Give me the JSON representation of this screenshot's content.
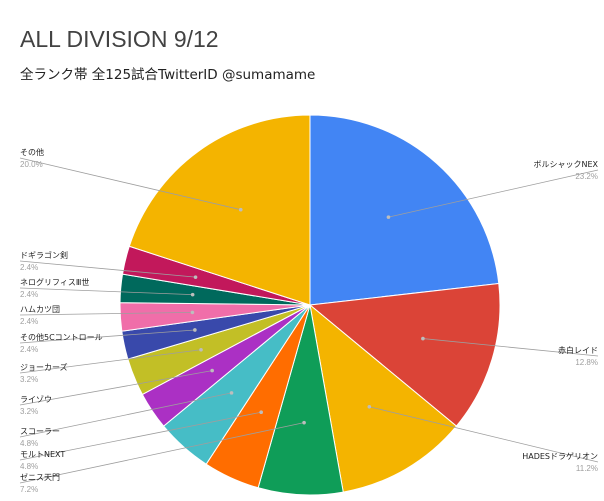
{
  "chart_data": {
    "type": "pie",
    "title": "ALL DIVISION 9/12",
    "subtitle": "全ランク帯 全125試合TwitterID @sumamame",
    "legend": "labels",
    "slices": [
      {
        "name": "ボルシャックNEX",
        "value": 23.2,
        "value_label": "23.2%",
        "color": "#4285f4",
        "side": "right"
      },
      {
        "name": "赤白レイド",
        "value": 12.8,
        "value_label": "12.8%",
        "color": "#db4437",
        "side": "right"
      },
      {
        "name": "HADESドラゲリオン",
        "value": 11.2,
        "value_label": "11.2%",
        "color": "#f4b400",
        "side": "right"
      },
      {
        "name": "ゼニス天門",
        "value": 7.2,
        "value_label": "7.2%",
        "color": "#0f9d58",
        "side": "left"
      },
      {
        "name": "モルトNEXT",
        "value": 4.8,
        "value_label": "4.8%",
        "color": "#ff6d00",
        "side": "left"
      },
      {
        "name": "スコーラー",
        "value": 4.8,
        "value_label": "4.8%",
        "color": "#46bdc6",
        "side": "left"
      },
      {
        "name": "ライゾウ",
        "value": 3.2,
        "value_label": "3.2%",
        "color": "#ab30c4",
        "side": "left"
      },
      {
        "name": "ジョーカーズ",
        "value": 3.2,
        "value_label": "3.2%",
        "color": "#c2bf26",
        "side": "left"
      },
      {
        "name": "その他5Cコントロール",
        "value": 2.4,
        "value_label": "2.4%",
        "color": "#3949ab",
        "side": "left"
      },
      {
        "name": "ハムカツ団",
        "value": 2.4,
        "value_label": "2.4%",
        "color": "#f06ea9",
        "side": "left"
      },
      {
        "name": "ネログリフィスⅢ世",
        "value": 2.4,
        "value_label": "2.4%",
        "color": "#00695c",
        "side": "left"
      },
      {
        "name": "ドギラゴン剣",
        "value": 2.4,
        "value_label": "2.4%",
        "color": "#c2185b",
        "side": "left"
      },
      {
        "name": "その他",
        "value": 20.0,
        "value_label": "20.0%",
        "color": "#f4b400",
        "side": "left"
      }
    ]
  }
}
